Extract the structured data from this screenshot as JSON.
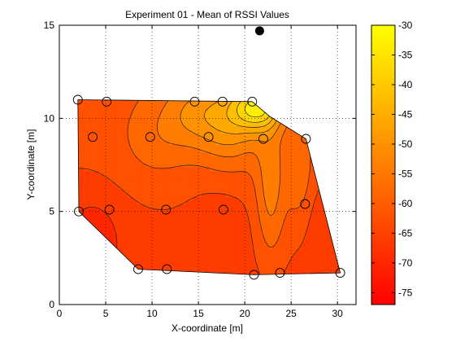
{
  "chart_data": {
    "type": "contour",
    "title": "Experiment 01 - Mean of RSSI Values",
    "xlabel": "X-coordinate [m]",
    "ylabel": "Y-coordinate [m]",
    "xlim": [
      0,
      32
    ],
    "ylim": [
      0,
      15
    ],
    "xticks": [
      0,
      5,
      10,
      15,
      20,
      25,
      30
    ],
    "yticks": [
      0,
      5,
      10,
      15
    ],
    "grid": true,
    "measurement_points": [
      {
        "x": 2.0,
        "y": 11.0
      },
      {
        "x": 5.1,
        "y": 10.9
      },
      {
        "x": 14.6,
        "y": 10.9
      },
      {
        "x": 17.6,
        "y": 10.9
      },
      {
        "x": 20.8,
        "y": 10.9
      },
      {
        "x": 3.6,
        "y": 9.0
      },
      {
        "x": 9.8,
        "y": 9.0
      },
      {
        "x": 16.1,
        "y": 9.0
      },
      {
        "x": 22.0,
        "y": 8.9
      },
      {
        "x": 26.6,
        "y": 8.9
      },
      {
        "x": 2.1,
        "y": 5.0
      },
      {
        "x": 5.4,
        "y": 5.1
      },
      {
        "x": 11.5,
        "y": 5.1
      },
      {
        "x": 17.7,
        "y": 5.1
      },
      {
        "x": 26.5,
        "y": 5.4
      },
      {
        "x": 8.5,
        "y": 1.9
      },
      {
        "x": 11.6,
        "y": 1.9
      },
      {
        "x": 21.0,
        "y": 1.6
      },
      {
        "x": 23.8,
        "y": 1.7
      },
      {
        "x": 30.3,
        "y": 1.7
      }
    ],
    "reference_point": {
      "x": 21.6,
      "y": 14.7
    },
    "colorbar": {
      "range": [
        -77,
        -30
      ],
      "ticks": [
        -30,
        -35,
        -40,
        -45,
        -50,
        -55,
        -60,
        -65,
        -70,
        -75
      ],
      "colormap": "autumn",
      "color_low": "#ff0000",
      "color_high": "#ffff00"
    },
    "contour_levels": [
      -72,
      -68,
      -64,
      -60,
      -56,
      -52,
      -48,
      -44,
      -40,
      -36
    ]
  }
}
